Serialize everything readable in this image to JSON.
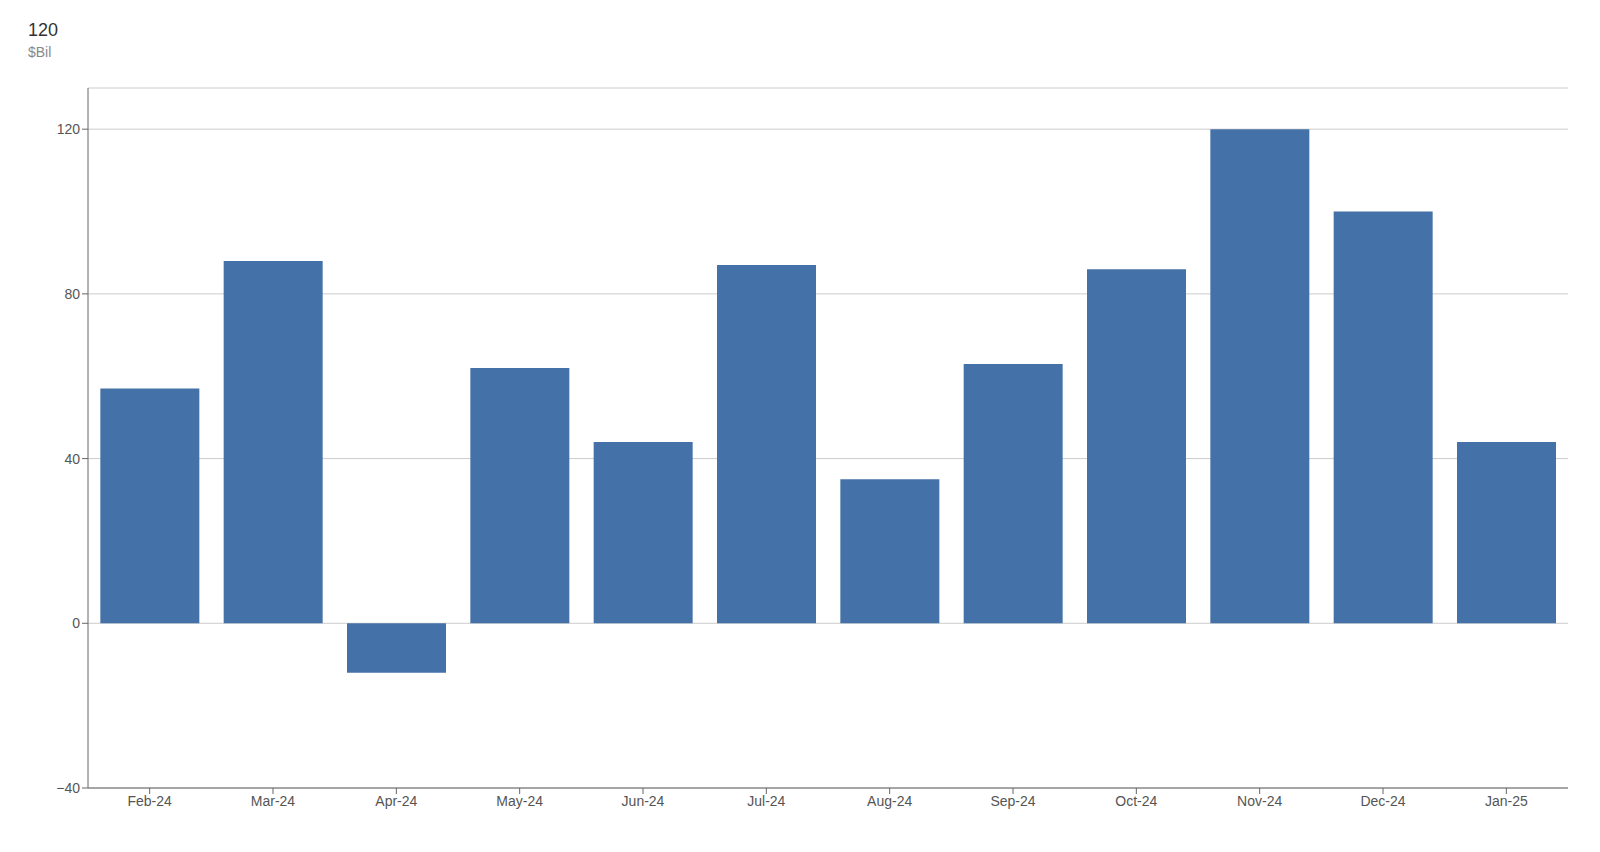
{
  "chart_data": {
    "type": "bar",
    "categories": [
      "Feb-24",
      "Mar-24",
      "Apr-24",
      "May-24",
      "Jun-24",
      "Jul-24",
      "Aug-24",
      "Sep-24",
      "Oct-24",
      "Nov-24",
      "Dec-24",
      "Jan-25"
    ],
    "values": [
      57,
      88,
      -12,
      62,
      44,
      87,
      35,
      63,
      86,
      120,
      100,
      44
    ],
    "color": "#4472A8",
    "ylim": [
      -40,
      130
    ],
    "yticks": [
      {
        "value": -40,
        "label": "−40"
      },
      0,
      40,
      80,
      120
    ],
    "ylabel": "$Bil",
    "annotations": [
      "120"
    ],
    "grid": true
  }
}
